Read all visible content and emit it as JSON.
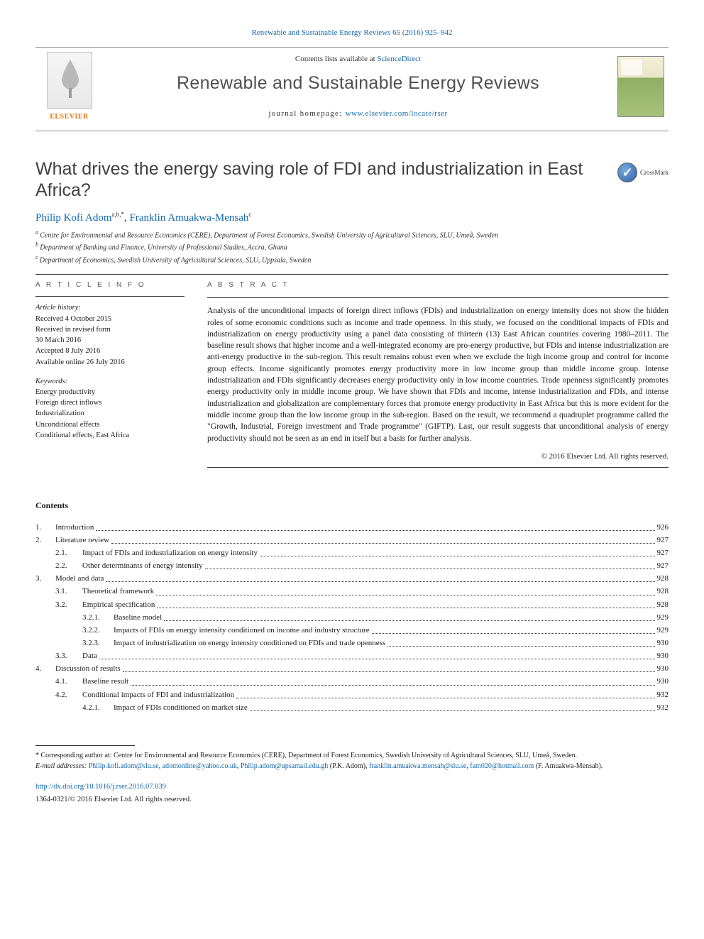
{
  "citation_line": "Renewable and Sustainable Energy Reviews 65 (2016) 925–942",
  "masthead": {
    "contents_lists_prefix": "Contents lists available at ",
    "contents_lists_link": "ScienceDirect",
    "journal_name": "Renewable and Sustainable Energy Reviews",
    "homepage_label": "journal homepage: ",
    "homepage_url": "www.elsevier.com/locate/rser",
    "publisher_logo_text": "ELSEVIER"
  },
  "crossmark_label": "CrossMark",
  "article": {
    "title": "What drives the energy saving role of FDI and industrialization in East Africa?",
    "authors_html_parts": {
      "a1_name": "Philip Kofi Adom",
      "a1_sup": "a,b,*",
      "sep": ", ",
      "a2_name": "Franklin Amuakwa-Mensah",
      "a2_sup": "c"
    },
    "affiliations": [
      "Centre for Environmental and Resource Economics (CERE), Department of Forest Economics, Swedish University of Agricultural Sciences, SLU, Umeå, Sweden",
      "Department of Banking and Finance, University of Professional Studies, Accra, Ghana",
      "Department of Economics, Swedish University of Agricultural Sciences, SLU, Uppsala, Sweden"
    ],
    "aff_markers": [
      "a",
      "b",
      "c"
    ]
  },
  "info": {
    "heading": "A R T I C L E  I N F O",
    "history_label": "Article history:",
    "history": [
      "Received 4 October 2015",
      "Received in revised form",
      "30 March 2016",
      "Accepted 8 July 2016",
      "Available online 26 July 2016"
    ],
    "keywords_label": "Keywords:",
    "keywords": [
      "Energy productivity",
      "Foreign direct inflows",
      "Industrialization",
      "Unconditional effects",
      "Conditional effects, East Africa"
    ]
  },
  "abstract": {
    "heading": "A B S T R A C T",
    "text": "Analysis of the unconditional impacts of foreign direct inflows (FDIs) and industrialization on energy intensity does not show the hidden roles of some economic conditions such as income and trade openness. In this study, we focused on the conditional impacts of FDIs and industrialization on energy productivity using a panel data consisting of thirteen (13) East African countries covering 1980–2011. The baseline result shows that higher income and a well-integrated economy are pro-energy productive, but FDIs and intense industrialization are anti-energy productive in the sub-region. This result remains robust even when we exclude the high income group and control for income group effects. Income significantly promotes energy productivity more in low income group than middle income group. Intense industrialization and FDIs significantly decreases energy productivity only in low income countries. Trade openness significantly promotes energy productivity only in middle income group. We have shown that FDIs and income, intense industrialization and FDIs, and intense industrialization and globalization are complementary forces that promote energy productivity in East Africa but this is more evident for the middle income group than the low income group in the sub-region. Based on the result, we recommend a quadruplet programme called the \"Growth, Industrial, Foreign investment and Trade programme\" (GIFTP). Last, our result suggests that unconditional analysis of energy productivity should not be seen as an end in itself but a basis for further analysis.",
    "copyright": "© 2016 Elsevier Ltd. All rights reserved."
  },
  "contents": {
    "heading": "Contents",
    "items": [
      {
        "level": 1,
        "num": "1.",
        "title": "Introduction",
        "page": "926"
      },
      {
        "level": 1,
        "num": "2.",
        "title": "Literature review",
        "page": "927"
      },
      {
        "level": 2,
        "num": "2.1.",
        "title": "Impact of FDIs and industrialization on energy intensity",
        "page": "927"
      },
      {
        "level": 2,
        "num": "2.2.",
        "title": "Other determinants of energy intensity",
        "page": "927"
      },
      {
        "level": 1,
        "num": "3.",
        "title": "Model and data",
        "page": "928"
      },
      {
        "level": 2,
        "num": "3.1.",
        "title": "Theoretical framework",
        "page": "928"
      },
      {
        "level": 2,
        "num": "3.2.",
        "title": "Empirical specification",
        "page": "928"
      },
      {
        "level": 3,
        "num": "3.2.1.",
        "title": "Baseline model",
        "page": "929"
      },
      {
        "level": 3,
        "num": "3.2.2.",
        "title": "Impacts of FDIs on energy intensity conditioned on income and industry structure",
        "page": "929"
      },
      {
        "level": 3,
        "num": "3.2.3.",
        "title": "Impact of industrialization on energy intensity conditioned on FDIs and trade openness",
        "page": "930"
      },
      {
        "level": 2,
        "num": "3.3.",
        "title": "Data",
        "page": "930"
      },
      {
        "level": 1,
        "num": "4.",
        "title": "Discussion of results",
        "page": "930"
      },
      {
        "level": 2,
        "num": "4.1.",
        "title": "Baseline result",
        "page": "930"
      },
      {
        "level": 2,
        "num": "4.2.",
        "title": "Conditional impacts of FDI and industrialization",
        "page": "932"
      },
      {
        "level": 3,
        "num": "4.2.1.",
        "title": "Impact of FDIs conditioned on market size",
        "page": "932"
      }
    ]
  },
  "footnotes": {
    "corresponding": "* Corresponding author at: Centre for Environmental and Resource Economics (CERE), Department of Forest Economics, Swedish University of Agricultural Sciences, SLU, Umeå, Sweden.",
    "email_label": "E-mail addresses: ",
    "emails": [
      {
        "addr": "Philip.kofi.adom@slu.se",
        "who": ""
      },
      {
        "addr": "adomonline@yahoo.co.uk",
        "who": ""
      },
      {
        "addr": "Philip.adom@upsamail.edu.gh",
        "who": " (P.K. Adom)"
      },
      {
        "addr": "franklin.amuakwa.mensah@slu.se",
        "who": ""
      },
      {
        "addr": "fam020@hotmail.com",
        "who": " (F. Amuakwa-Mensah)."
      }
    ],
    "doi": "http://dx.doi.org/10.1016/j.rser.2016.07.039",
    "issn_line": "1364-0321/© 2016 Elsevier Ltd. All rights reserved."
  }
}
